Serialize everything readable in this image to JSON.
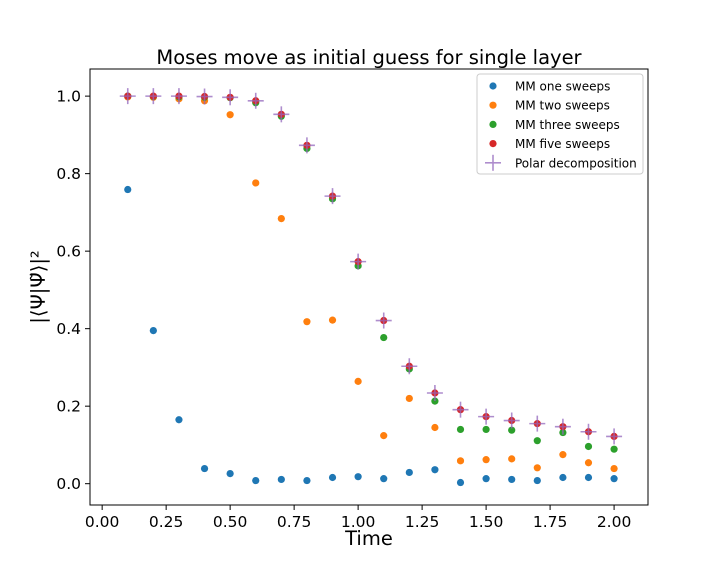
{
  "chart_data": {
    "type": "scatter",
    "title": "Moses move as initial guess for single layer",
    "xlabel": "Time",
    "ylabel": "|⟨Ψ|Ψ̃⟩|²",
    "xlim": [
      -0.0475,
      2.1325
    ],
    "ylim": [
      -0.055,
      1.07
    ],
    "xticks": [
      "0.00",
      "0.25",
      "0.50",
      "0.75",
      "1.00",
      "1.25",
      "1.50",
      "1.75",
      "2.00"
    ],
    "yticks": [
      "0.0",
      "0.2",
      "0.4",
      "0.6",
      "0.8",
      "1.0"
    ],
    "grid": false,
    "legend_position": "top-right",
    "x": [
      0.1,
      0.2,
      0.3,
      0.4,
      0.5,
      0.6,
      0.7,
      0.8,
      0.9,
      1.0,
      1.1,
      1.2,
      1.3,
      1.4,
      1.5,
      1.6,
      1.7,
      1.8,
      1.9,
      2.0
    ],
    "series": [
      {
        "name": "MM one sweeps",
        "marker": "dot",
        "color": "#1f77b4",
        "values": [
          0.759,
          0.395,
          0.165,
          0.039,
          0.026,
          0.008,
          0.011,
          0.008,
          0.016,
          0.018,
          0.013,
          0.029,
          0.036,
          0.003,
          0.013,
          0.011,
          0.008,
          0.016,
          0.016,
          0.013
        ]
      },
      {
        "name": "MM two sweeps",
        "marker": "dot",
        "color": "#ff7f0e",
        "values": [
          0.998,
          0.997,
          0.993,
          0.988,
          0.952,
          0.776,
          0.684,
          0.418,
          0.422,
          0.264,
          0.124,
          0.22,
          0.145,
          0.059,
          0.062,
          0.064,
          0.041,
          0.075,
          0.054,
          0.039
        ]
      },
      {
        "name": "MM three sweeps",
        "marker": "dot",
        "color": "#2ca02c",
        "values": [
          1.0,
          0.999,
          0.998,
          0.997,
          0.996,
          0.983,
          0.948,
          0.865,
          0.735,
          0.562,
          0.377,
          0.296,
          0.213,
          0.14,
          0.14,
          0.138,
          0.111,
          0.132,
          0.096,
          0.089
        ]
      },
      {
        "name": "MM five sweeps",
        "marker": "dot",
        "color": "#d62728",
        "values": [
          1.0,
          1.0,
          1.0,
          0.999,
          0.997,
          0.988,
          0.953,
          0.873,
          0.742,
          0.573,
          0.421,
          0.303,
          0.234,
          0.191,
          0.173,
          0.163,
          0.155,
          0.147,
          0.134,
          0.122
        ]
      },
      {
        "name": "Polar decomposition",
        "marker": "plus",
        "color": "#9467bd",
        "values": [
          1.0,
          1.0,
          1.0,
          0.999,
          0.997,
          0.988,
          0.953,
          0.873,
          0.742,
          0.573,
          0.421,
          0.303,
          0.234,
          0.191,
          0.173,
          0.163,
          0.155,
          0.147,
          0.134,
          0.122
        ]
      }
    ]
  }
}
